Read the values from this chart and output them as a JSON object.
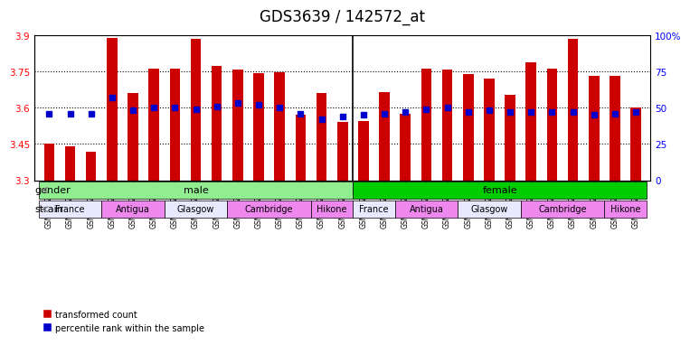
{
  "title": "GDS3639 / 142572_at",
  "samples": [
    "GSM231205",
    "GSM231206",
    "GSM231207",
    "GSM231211",
    "GSM231212",
    "GSM231213",
    "GSM231217",
    "GSM231218",
    "GSM231219",
    "GSM231223",
    "GSM231224",
    "GSM231225",
    "GSM231229",
    "GSM231230",
    "GSM231231",
    "GSM231208",
    "GSM231209",
    "GSM231210",
    "GSM231214",
    "GSM231215",
    "GSM231216",
    "GSM231220",
    "GSM231221",
    "GSM231222",
    "GSM231226",
    "GSM231227",
    "GSM231228",
    "GSM231232",
    "GSM231233"
  ],
  "transformed_count": [
    3.453,
    3.442,
    3.418,
    3.888,
    3.662,
    3.763,
    3.763,
    3.884,
    3.772,
    3.757,
    3.742,
    3.747,
    3.573,
    3.662,
    3.541,
    3.545,
    3.663,
    3.575,
    3.762,
    3.757,
    3.738,
    3.72,
    3.655,
    3.788,
    3.762,
    3.884,
    3.732,
    3.732,
    3.6
  ],
  "percentile_rank": [
    46,
    46,
    46,
    57,
    48,
    50,
    50,
    49,
    51,
    53,
    52,
    50,
    46,
    42,
    44,
    45,
    46,
    47,
    49,
    50,
    47,
    48,
    47,
    47,
    47,
    47,
    45,
    46,
    47
  ],
  "bar_color": "#cc0000",
  "dot_color": "#0000cc",
  "ylim_left": [
    3.3,
    3.9
  ],
  "ylim_right": [
    0,
    100
  ],
  "yticks_left": [
    3.3,
    3.45,
    3.6,
    3.75,
    3.9
  ],
  "yticks_right": [
    0,
    25,
    50,
    75,
    100
  ],
  "ytick_labels_left": [
    "3.3",
    "3.45",
    "3.6",
    "3.75",
    "3.9"
  ],
  "ytick_labels_right": [
    "0",
    "25",
    "50",
    "75",
    "100%"
  ],
  "gender_groups": [
    {
      "label": "male",
      "start": 0,
      "end": 15,
      "color": "#90ee90"
    },
    {
      "label": "female",
      "start": 15,
      "end": 29,
      "color": "#00cc00"
    }
  ],
  "strain_groups": [
    {
      "label": "France",
      "start": 0,
      "end": 3,
      "color": "#ddddff"
    },
    {
      "label": "Antigua",
      "start": 3,
      "end": 6,
      "color": "#ee88ee"
    },
    {
      "label": "Glasgow",
      "start": 6,
      "end": 9,
      "color": "#ddddff"
    },
    {
      "label": "Cambridge",
      "start": 9,
      "end": 13,
      "color": "#ee88ee"
    },
    {
      "label": "Hikone",
      "start": 13,
      "end": 15,
      "color": "#ee88ee"
    },
    {
      "label": "France",
      "start": 15,
      "end": 17,
      "color": "#ddddff"
    },
    {
      "label": "Antigua",
      "start": 17,
      "end": 20,
      "color": "#ee88ee"
    },
    {
      "label": "Glasgow",
      "start": 20,
      "end": 23,
      "color": "#ddddff"
    },
    {
      "label": "Cambridge",
      "start": 23,
      "end": 27,
      "color": "#ee88ee"
    },
    {
      "label": "Hikone",
      "start": 27,
      "end": 29,
      "color": "#ee88ee"
    }
  ],
  "grid_color": "black",
  "title_fontsize": 12,
  "tick_fontsize": 7.5,
  "label_fontsize": 8,
  "bar_width": 0.5,
  "base_value": 3.3
}
